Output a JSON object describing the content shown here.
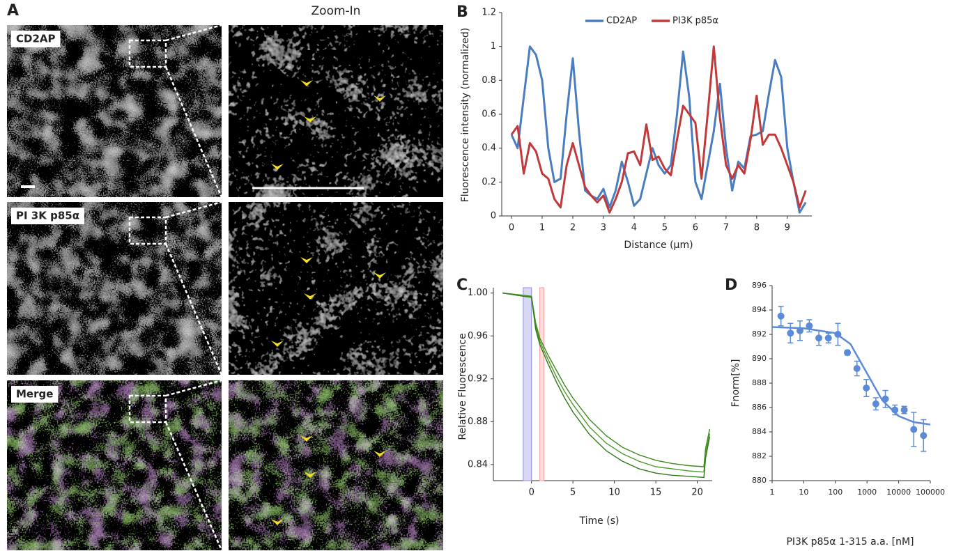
{
  "panel_a": {
    "label": "A",
    "zoom_title": "Zoom-In",
    "rows": [
      {
        "channel": "CD2AP",
        "color": "#3a9a3a"
      },
      {
        "channel": "PI 3K p85α",
        "color": "#d4169b"
      },
      {
        "channel": "Merge",
        "color": "#000000"
      }
    ]
  },
  "chart_data": [
    {
      "type": "line",
      "label": "B",
      "xlabel": "Distance (μm)",
      "ylabel": "Fluorescence  intensity (normalized)",
      "x": [
        0,
        0.2,
        0.4,
        0.6,
        0.8,
        1.0,
        1.2,
        1.4,
        1.6,
        1.8,
        2.0,
        2.2,
        2.4,
        2.6,
        2.8,
        3.0,
        3.2,
        3.4,
        3.6,
        3.8,
        4.0,
        4.2,
        4.4,
        4.6,
        4.8,
        5.0,
        5.2,
        5.4,
        5.6,
        5.8,
        6.0,
        6.2,
        6.4,
        6.6,
        6.8,
        7.0,
        7.2,
        7.4,
        7.6,
        7.8,
        8.0,
        8.2,
        8.4,
        8.6,
        8.8,
        9.0,
        9.2,
        9.4,
        9.6
      ],
      "series": [
        {
          "name": "CD2AP",
          "color": "#4a7cc0",
          "values": [
            0.48,
            0.4,
            0.7,
            1.0,
            0.95,
            0.8,
            0.4,
            0.2,
            0.22,
            0.6,
            0.93,
            0.5,
            0.15,
            0.12,
            0.1,
            0.16,
            0.05,
            0.15,
            0.32,
            0.2,
            0.06,
            0.1,
            0.25,
            0.4,
            0.3,
            0.25,
            0.3,
            0.6,
            0.97,
            0.7,
            0.2,
            0.1,
            0.3,
            0.5,
            0.78,
            0.4,
            0.15,
            0.32,
            0.28,
            0.47,
            0.48,
            0.5,
            0.72,
            0.92,
            0.82,
            0.4,
            0.2,
            0.02,
            0.08
          ]
        },
        {
          "name": "PI3K p85α",
          "color": "#c0393b",
          "values": [
            0.48,
            0.53,
            0.25,
            0.43,
            0.38,
            0.25,
            0.22,
            0.1,
            0.05,
            0.3,
            0.43,
            0.3,
            0.17,
            0.12,
            0.08,
            0.12,
            0.02,
            0.1,
            0.2,
            0.37,
            0.38,
            0.3,
            0.54,
            0.33,
            0.35,
            0.28,
            0.24,
            0.45,
            0.65,
            0.6,
            0.55,
            0.22,
            0.6,
            1.0,
            0.58,
            0.3,
            0.22,
            0.3,
            0.25,
            0.45,
            0.71,
            0.42,
            0.48,
            0.48,
            0.4,
            0.3,
            0.2,
            0.05,
            0.15
          ]
        }
      ],
      "xlim": [
        0,
        9.8
      ],
      "xticks": [
        0,
        1,
        2,
        3,
        4,
        5,
        6,
        7,
        8,
        9
      ],
      "ylim": [
        0,
        1.2
      ],
      "yticks": [
        0,
        0.2,
        0.4,
        0.6,
        0.8,
        1,
        1.2
      ]
    },
    {
      "type": "line",
      "label": "C",
      "xlabel": "Time (s)",
      "ylabel": "Relative Fluorescence",
      "x": [
        -3.5,
        -1,
        0,
        0.5,
        1,
        2,
        3,
        4,
        5,
        7,
        9,
        11,
        13,
        15,
        17,
        19,
        20.8,
        21,
        21.5
      ],
      "regions": [
        {
          "start": -1,
          "end": 0,
          "color": "#8f8fe0"
        },
        {
          "start": 1,
          "end": 1.5,
          "color": "#f0a0a0"
        }
      ],
      "series": [
        {
          "color": "#3d8a1f",
          "values": [
            1.0,
            0.998,
            0.997,
            0.972,
            0.958,
            0.942,
            0.928,
            0.914,
            0.902,
            0.882,
            0.867,
            0.856,
            0.849,
            0.844,
            0.841,
            0.839,
            0.838,
            0.855,
            0.873
          ]
        },
        {
          "color": "#4f9a2a",
          "values": [
            1.0,
            0.998,
            0.996,
            0.969,
            0.955,
            0.938,
            0.922,
            0.908,
            0.896,
            0.875,
            0.86,
            0.85,
            0.843,
            0.838,
            0.836,
            0.834,
            0.833,
            0.85,
            0.869
          ]
        },
        {
          "color": "#2f7a18",
          "values": [
            1.0,
            0.997,
            0.996,
            0.966,
            0.952,
            0.934,
            0.917,
            0.902,
            0.889,
            0.868,
            0.853,
            0.843,
            0.836,
            0.832,
            0.83,
            0.829,
            0.828,
            0.846,
            0.866
          ]
        }
      ],
      "xlim": [
        -4.6,
        21.8
      ],
      "xticks": [
        0,
        5,
        10,
        15,
        20
      ],
      "ylim": [
        0.825,
        1.005
      ],
      "yticks": [
        0.84,
        0.88,
        0.92,
        0.96,
        {
          "value": 1,
          "label": "1.00"
        }
      ]
    },
    {
      "type": "scatter",
      "label": "D",
      "xlabel": "PI3K p85α 1-315 a.a. [nM]",
      "ylabel": "Fnorm[%]",
      "color": "#5b8bd6",
      "xscale": "log",
      "x": [
        1.9,
        3.8,
        7.6,
        15,
        30,
        60,
        120,
        240,
        480,
        950,
        1900,
        3800,
        7600,
        15000,
        30000,
        61000
      ],
      "values": [
        893.5,
        892.1,
        892.3,
        892.7,
        891.7,
        891.7,
        892.0,
        890.5,
        889.2,
        887.6,
        886.3,
        886.7,
        885.8,
        885.8,
        884.2,
        883.7
      ],
      "errors": [
        0.8,
        0.8,
        0.8,
        0.5,
        0.6,
        0.4,
        0.9,
        0.2,
        0.6,
        0.7,
        0.5,
        0.7,
        0.4,
        0.3,
        1.4,
        1.3
      ],
      "fit": {
        "x": [
          1,
          10,
          100,
          300,
          1000,
          3000,
          10000,
          30000,
          100000
        ],
        "values": [
          892.6,
          892.5,
          892.1,
          891.2,
          888.8,
          886.6,
          885.3,
          884.8,
          884.6
        ]
      },
      "xlim": [
        1,
        100000
      ],
      "xticks": [
        1,
        10,
        100,
        1000,
        10000,
        100000
      ],
      "ylim": [
        880,
        896
      ],
      "yticks": [
        880,
        882,
        884,
        886,
        888,
        890,
        892,
        894,
        896
      ]
    }
  ]
}
